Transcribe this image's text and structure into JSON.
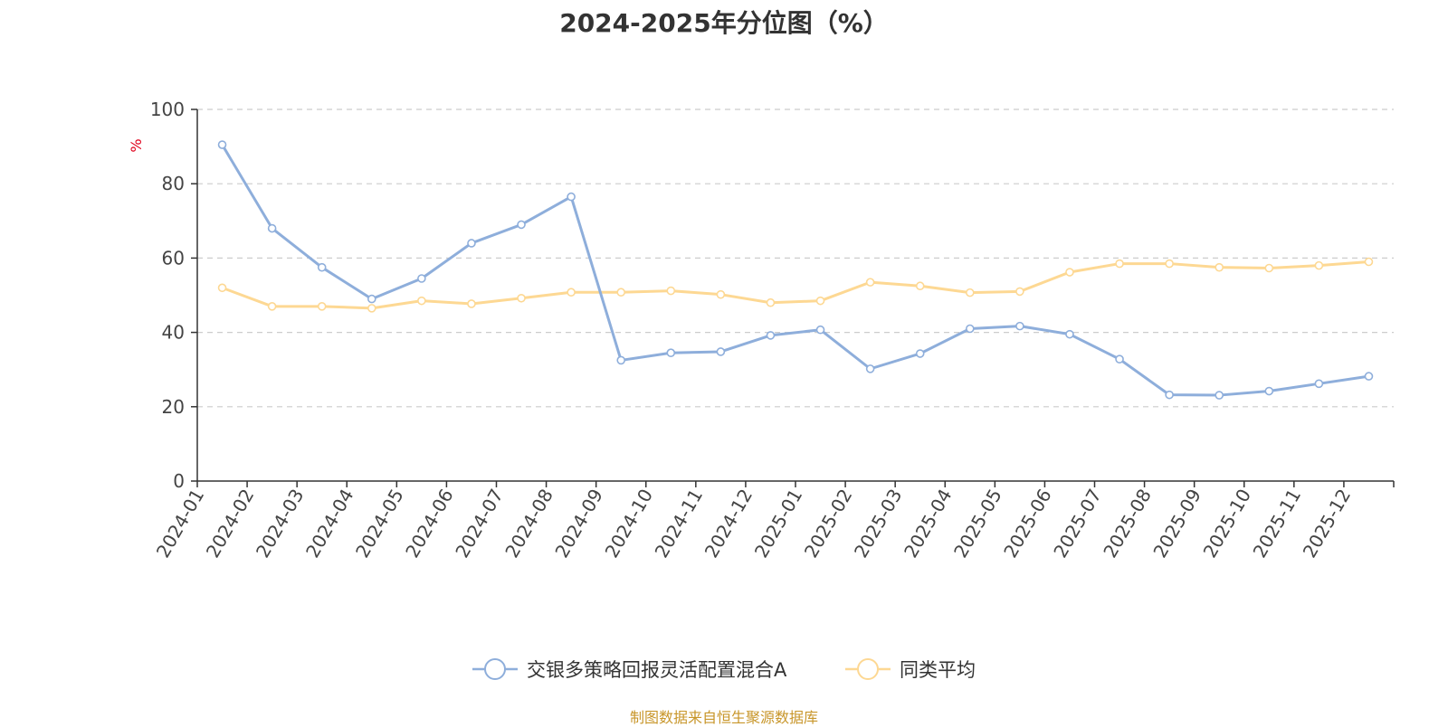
{
  "source_note": "制图数据来自恒生聚源数据库",
  "colors": {
    "series_1": "#8eaedb",
    "series_2": "#fdd893",
    "unit": "#e0001b",
    "source": "#c8962a",
    "grid": "#cccccc",
    "axis": "#333333"
  },
  "chart_data": {
    "type": "line",
    "title": "2024-2025年分位图（%）",
    "ylabel": "%",
    "xlabel": "",
    "ylim": [
      0,
      100
    ],
    "yticks": [
      0,
      20,
      40,
      60,
      80,
      100
    ],
    "grid": "horizontal dashed",
    "legend_position": "bottom-center",
    "categories": [
      "2024-01",
      "2024-02",
      "2024-03",
      "2024-04",
      "2024-05",
      "2024-06",
      "2024-07",
      "2024-08",
      "2024-09",
      "2024-10",
      "2024-11",
      "2024-12",
      "2025-01",
      "2025-02",
      "2025-03",
      "2025-04",
      "2025-05",
      "2025-06",
      "2025-07",
      "2025-08",
      "2025-09",
      "2025-10",
      "2025-11",
      "2025-12"
    ],
    "series": [
      {
        "name": "交银多策略回报灵活配置混合A",
        "values": [
          90.5,
          68.0,
          57.5,
          49.0,
          54.5,
          64.0,
          69.0,
          76.5,
          32.5,
          34.5,
          34.8,
          39.2,
          40.7,
          30.2,
          34.3,
          41.0,
          41.7,
          39.5,
          32.8,
          23.2,
          23.1,
          24.2,
          26.2,
          28.2
        ]
      },
      {
        "name": "同类平均",
        "values": [
          52.0,
          47.0,
          47.0,
          46.5,
          48.5,
          47.7,
          49.2,
          50.8,
          50.8,
          51.2,
          50.2,
          48.0,
          48.5,
          53.5,
          52.5,
          50.7,
          51.0,
          56.2,
          58.5,
          58.5,
          57.5,
          57.3,
          58.0,
          59.0
        ]
      }
    ]
  }
}
